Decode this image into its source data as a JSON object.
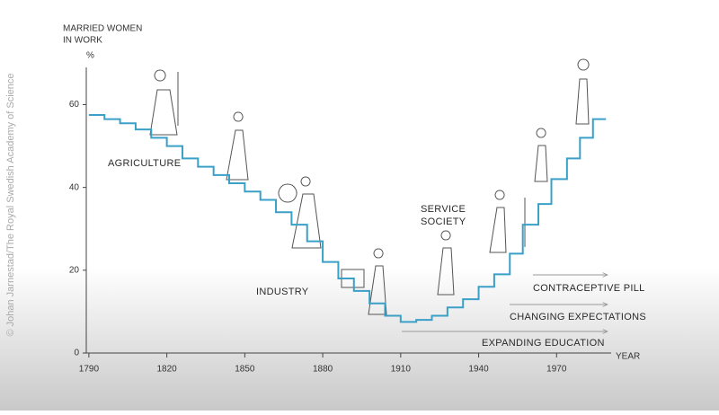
{
  "chart_data": {
    "type": "step",
    "y_label": [
      "MARRIED WOMEN",
      "IN WORK"
    ],
    "y_unit": "%",
    "x_label": "YEAR",
    "color": "#3aa0c8",
    "x": [
      1790,
      1796,
      1802,
      1808,
      1814,
      1820,
      1826,
      1832,
      1838,
      1844,
      1850,
      1856,
      1862,
      1868,
      1874,
      1880,
      1886,
      1892,
      1898,
      1904,
      1910,
      1916,
      1922,
      1928,
      1934,
      1940,
      1946,
      1952,
      1957,
      1963,
      1968,
      1974,
      1979,
      1984,
      1989
    ],
    "values": [
      57.5,
      56.5,
      55.5,
      54,
      52,
      50,
      47,
      45,
      43,
      41,
      39,
      37,
      34,
      31,
      27,
      22,
      18,
      15,
      12,
      9,
      7.5,
      8,
      9,
      11,
      13,
      16,
      19,
      24,
      31,
      36,
      42,
      47,
      52,
      56.5,
      56.5
    ],
    "xlim": [
      1789,
      1991
    ],
    "ylim": [
      0,
      69
    ],
    "xticks": [
      1790,
      1820,
      1850,
      1880,
      1910,
      1940,
      1970
    ],
    "yticks": [
      0,
      20,
      40,
      60
    ],
    "annotations": [
      "AGRICULTURE",
      "INDUSTRY",
      "SERVICE SOCIETY",
      "CONTRACEPTIVE PILL",
      "CHANGING EXPECTATIONS",
      "EXPANDING EDUCATION"
    ],
    "credit": "© Johan Jarnestad/The Royal Swedish Academy of Science"
  }
}
